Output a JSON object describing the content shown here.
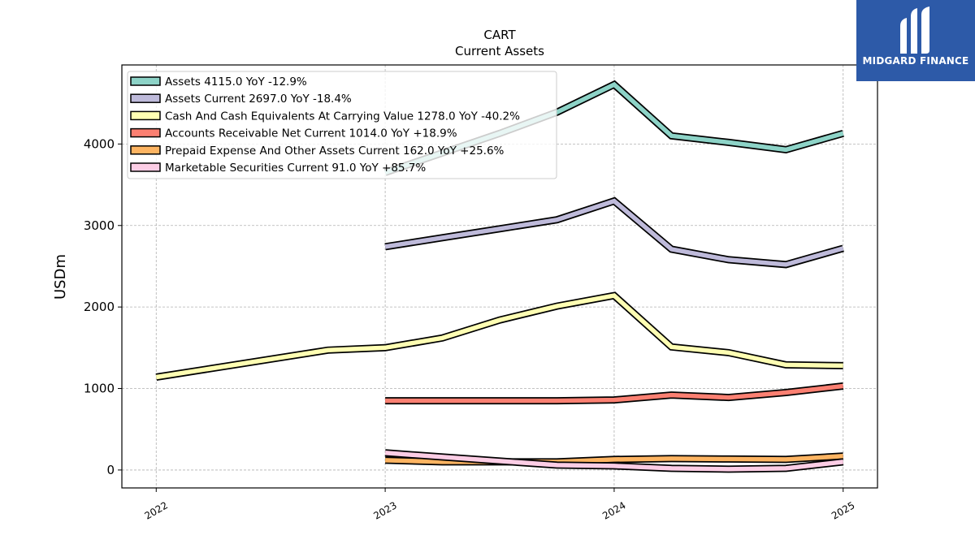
{
  "chart_data": {
    "type": "line",
    "title": "CART",
    "subtitle": "Current  Assets",
    "xlabel": "",
    "ylabel": "USDm",
    "xlim": [
      2021.85,
      2025.15
    ],
    "ylim": [
      -220,
      4970
    ],
    "x_ticks": [
      2022,
      2023,
      2024,
      2025
    ],
    "x_tick_labels": [
      "2022",
      "2023",
      "2024",
      "2025"
    ],
    "y_ticks": [
      0,
      1000,
      2000,
      3000,
      4000
    ],
    "y_tick_labels": [
      "0",
      "1000",
      "2000",
      "3000",
      "4000"
    ],
    "grid": true,
    "legend_position": "top-left",
    "series": [
      {
        "name": "Assets",
        "legend": "Assets  4115.0 YoY -12.9%",
        "color": "#8dd3c7",
        "x": [
          2023.0,
          2023.25,
          2023.5,
          2023.75,
          2024.0,
          2024.25,
          2024.5,
          2024.75,
          2025.0
        ],
        "values": [
          3650,
          3890,
          4130,
          4390,
          4730,
          4100,
          4020,
          3930,
          4130
        ]
      },
      {
        "name": "Assets Current",
        "legend": "Assets Current  2697.0 YoY -18.4%",
        "color": "#bebada",
        "x": [
          2023.0,
          2023.25,
          2023.5,
          2023.75,
          2024.0,
          2024.25,
          2024.5,
          2024.75,
          2025.0
        ],
        "values": [
          2740,
          2850,
          2960,
          3070,
          3300,
          2710,
          2580,
          2520,
          2720
        ]
      },
      {
        "name": "Cash And Cash Equivalents At Carrying Value",
        "legend": "Cash And Cash Equivalents At Carrying Value  1278.0 YoY -40.2%",
        "color": "#ffffb3",
        "x": [
          2022.0,
          2022.75,
          2023.0,
          2023.25,
          2023.5,
          2023.75,
          2024.0,
          2024.25,
          2024.5,
          2024.75,
          2025.0
        ],
        "values": [
          1140,
          1470,
          1500,
          1620,
          1840,
          2010,
          2140,
          1510,
          1440,
          1290,
          1280
        ]
      },
      {
        "name": "Accounts Receivable Net Current",
        "legend": "Accounts Receivable Net Current  1014.0 YoY +18.9%",
        "color": "#fb8072",
        "x": [
          2023.0,
          2023.25,
          2023.5,
          2023.75,
          2024.0,
          2024.25,
          2024.5,
          2024.75,
          2025.0
        ],
        "values": [
          850,
          850,
          850,
          850,
          860,
          920,
          890,
          950,
          1030
        ]
      },
      {
        "name": "Prepaid Expense And Other Assets Current",
        "legend": "Prepaid Expense And Other Assets Current  162.0 YoY +25.6%",
        "color": "#fdb462",
        "x": [
          2023.0,
          2023.25,
          2023.5,
          2023.75,
          2024.0,
          2024.25,
          2024.5,
          2024.75,
          2025.0
        ],
        "values": [
          120,
          100,
          100,
          100,
          130,
          140,
          135,
          130,
          170
        ]
      },
      {
        "name": "Marketable Securities Current",
        "legend": "Marketable Securities Current  91.0 YoY +85.7%",
        "color": "#fccde5",
        "x": [
          2023.0,
          2023.25,
          2023.5,
          2023.75,
          2024.0,
          2024.25,
          2024.5,
          2024.75,
          2025.0
        ],
        "values": [
          210,
          160,
          110,
          60,
          50,
          20,
          10,
          20,
          100
        ]
      }
    ]
  },
  "logo": {
    "text": "MIDGARD FINANCE",
    "background": "#2d5aa8",
    "icon": "midgard-logo-icon"
  }
}
